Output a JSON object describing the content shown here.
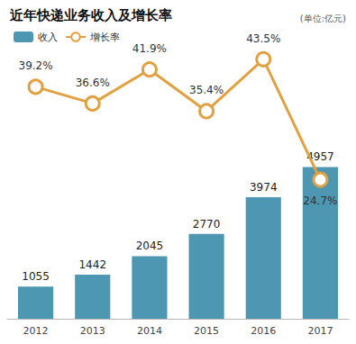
{
  "chart_data": {
    "type": "bar",
    "title": "近年快递业务收入及增长率",
    "subtitle": "(单位:亿元)",
    "categories": [
      "2012",
      "2013",
      "2014",
      "2015",
      "2016",
      "2017"
    ],
    "series": [
      {
        "name": "收入",
        "type": "bar",
        "color": "#4e97b3",
        "values": [
          1055,
          1442,
          2045,
          2770,
          3974,
          4957
        ]
      },
      {
        "name": "增长率",
        "type": "line",
        "axis": "y2",
        "color": "#e3a040",
        "marker": "circle",
        "values": [
          39.2,
          36.6,
          41.9,
          35.4,
          43.5,
          24.7
        ],
        "value_labels": [
          "39.2%",
          "36.6%",
          "41.9%",
          "35.4%",
          "43.5%",
          "24.7%"
        ]
      }
    ],
    "ylim": [
      0,
      9000
    ],
    "y2lim": [
      3,
      46
    ],
    "data_labels": true,
    "legend": "top-left",
    "grid": false,
    "tick_labels": "x"
  }
}
